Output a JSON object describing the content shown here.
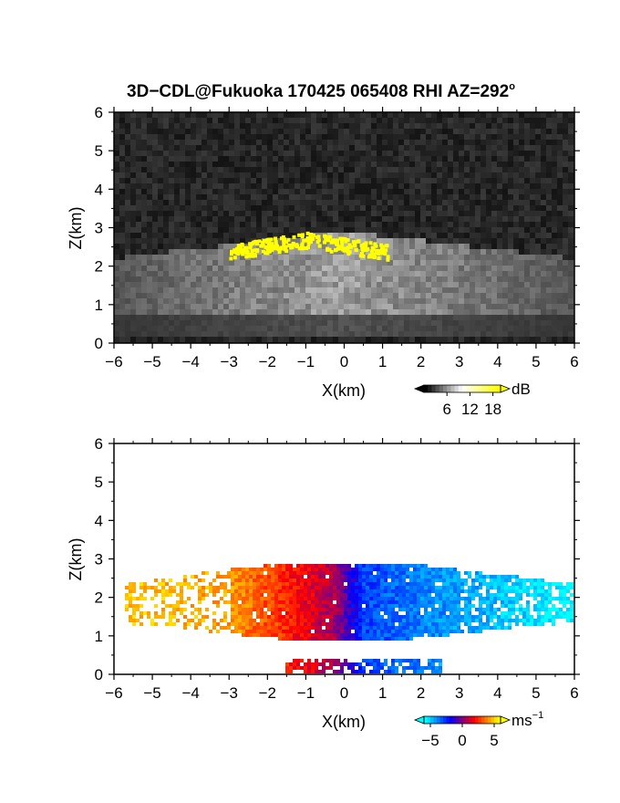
{
  "title": "3D−CDL@Fukuoka 170425 065408 RHI AZ=292",
  "title_degree": "o",
  "chart_data": [
    {
      "type": "heatmap",
      "panel": "snr",
      "xlabel": "X(km)",
      "ylabel": "Z(km)",
      "xlim": [
        -6,
        6
      ],
      "ylim": [
        0,
        6
      ],
      "xticks": [
        "−6",
        "−5",
        "−4",
        "−3",
        "−2",
        "−1",
        "0",
        "1",
        "2",
        "3",
        "4",
        "5",
        "6"
      ],
      "yticks": [
        "0",
        "1",
        "2",
        "3",
        "4",
        "5",
        "6"
      ],
      "colorbar": {
        "unit": "dB",
        "ticks": [
          "6",
          "12",
          "18"
        ],
        "tick_values": [
          6,
          12,
          18
        ],
        "range": [
          0,
          20
        ],
        "colors": [
          "#000000",
          "#ffffff",
          "#ffff00"
        ]
      },
      "background_db": 3,
      "echo_layer": {
        "x_range": [
          -6,
          6
        ],
        "z_range": [
          0.8,
          2.9
        ],
        "peak_db": 14
      },
      "saturated_cloud": {
        "x_range": [
          -3,
          1.1
        ],
        "z_range": [
          2.2,
          2.9
        ],
        "color": "#ffff00"
      }
    },
    {
      "type": "heatmap",
      "panel": "doppler_velocity",
      "xlabel": "X(km)",
      "ylabel": "Z(km)",
      "xlim": [
        -6,
        6
      ],
      "ylim": [
        0,
        6
      ],
      "xticks": [
        "−6",
        "−5",
        "−4",
        "−3",
        "−2",
        "−1",
        "0",
        "1",
        "2",
        "3",
        "4",
        "5",
        "6"
      ],
      "yticks": [
        "0",
        "1",
        "2",
        "3",
        "4",
        "5",
        "6"
      ],
      "colorbar": {
        "unit": "ms",
        "unit_exponent": "−1",
        "ticks": [
          "−5",
          "0",
          "5"
        ],
        "tick_values": [
          -5,
          0,
          5
        ],
        "range": [
          -6,
          6
        ],
        "colors": [
          "#00ffff",
          "#0000ff",
          "#ff0000",
          "#ffff00"
        ]
      },
      "velocity_field": [
        {
          "x": -5.5,
          "z": 1.8,
          "v": 5
        },
        {
          "x": -3.0,
          "z": 2.0,
          "v": 4.5
        },
        {
          "x": -1.5,
          "z": 2.0,
          "v": 2.5
        },
        {
          "x": -0.2,
          "z": 2.0,
          "v": 0.5
        },
        {
          "x": 0.5,
          "z": 2.0,
          "v": -3
        },
        {
          "x": 2.0,
          "z": 2.0,
          "v": -4
        },
        {
          "x": 4.0,
          "z": 2.0,
          "v": -5
        },
        {
          "x": 5.8,
          "z": 2.0,
          "v": -6
        }
      ],
      "echo_extent": {
        "x_range": [
          -5.7,
          6
        ],
        "z_range": [
          0.9,
          2.9
        ]
      },
      "lower_layer": {
        "x_range": [
          -1.5,
          2.6
        ],
        "z_range": [
          0,
          0.45
        ]
      }
    }
  ]
}
